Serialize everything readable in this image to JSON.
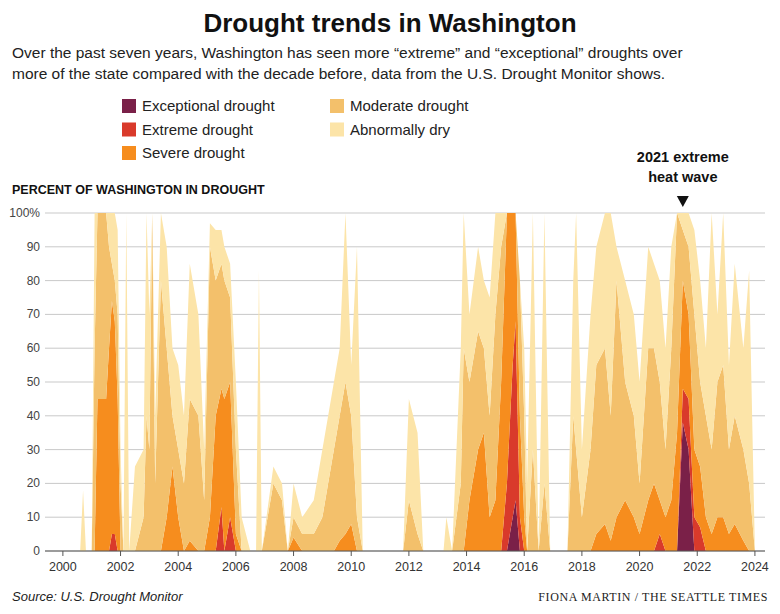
{
  "chart_data": {
    "type": "area",
    "stacked": true,
    "grid": true,
    "legend": "top-left",
    "title": "Drought trends in Washington",
    "subtitle": [
      "Over the past seven years, Washington has seen more “extreme” and “exceptional” droughts over",
      "more of the state compared with the decade before, data from the U.S. Drought Monitor shows."
    ],
    "y_label": "PERCENT OF WASHINGTON IN DROUGHT",
    "source": "Source: U.S. Drought Monitor",
    "credit": "FIONA MARTIN / THE SEATTLE TIMES",
    "annotations": [
      {
        "text": [
          "2021 extreme",
          "heat wave"
        ],
        "x": 2021.5
      }
    ],
    "xlim": [
      1999.38,
      2024.35
    ],
    "xticks": [
      2000,
      2002,
      2004,
      2006,
      2008,
      2010,
      2012,
      2014,
      2016,
      2018,
      2020,
      2022,
      2024
    ],
    "ylim": [
      0,
      100
    ],
    "yticks": [
      0,
      10,
      20,
      30,
      40,
      50,
      60,
      70,
      80,
      90,
      {
        "value": 100,
        "label": "100%"
      }
    ],
    "x": [
      2000.0,
      2000.6,
      2000.7,
      2000.8,
      2001.0,
      2001.1,
      2001.2,
      2001.5,
      2001.6,
      2001.7,
      2001.8,
      2001.9,
      2002.0,
      2002.1,
      2002.2,
      2002.3,
      2002.5,
      2002.8,
      2002.9,
      2003.0,
      2003.1,
      2003.2,
      2003.4,
      2003.6,
      2003.8,
      2004.0,
      2004.2,
      2004.4,
      2004.7,
      2004.9,
      2005.1,
      2005.3,
      2005.5,
      2005.6,
      2005.8,
      2006.0,
      2006.2,
      2006.5,
      2006.7,
      2006.8,
      2006.9,
      2007.3,
      2007.6,
      2007.8,
      2008.0,
      2008.3,
      2008.7,
      2009.0,
      2009.4,
      2009.6,
      2009.8,
      2010.0,
      2010.2,
      2010.4,
      2011.8,
      2012.0,
      2012.3,
      2012.5,
      2013.2,
      2013.3,
      2013.5,
      2013.8,
      2013.9,
      2014.1,
      2014.4,
      2014.6,
      2014.8,
      2015.0,
      2015.2,
      2015.4,
      2015.6,
      2015.7,
      2015.85,
      2016.0,
      2016.1,
      2016.3,
      2016.5,
      2016.7,
      2016.9,
      2017.5,
      2017.7,
      2017.8,
      2018.0,
      2018.3,
      2018.5,
      2018.8,
      2019.0,
      2019.2,
      2019.5,
      2019.8,
      2020.0,
      2020.3,
      2020.5,
      2020.7,
      2020.9,
      2021.1,
      2021.3,
      2021.5,
      2021.7,
      2021.9,
      2022.1,
      2022.3,
      2022.5,
      2022.7,
      2022.9,
      2023.1,
      2023.3,
      2023.6,
      2023.8,
      2024.0
    ],
    "series": [
      {
        "name": "Exceptional drought",
        "color": "#7a2048",
        "values": [
          0,
          0,
          0,
          0,
          0,
          0,
          0,
          0,
          0,
          0,
          0,
          0,
          0,
          0,
          0,
          0,
          0,
          0,
          0,
          0,
          0,
          0,
          0,
          0,
          0,
          0,
          0,
          0,
          0,
          0,
          0,
          0,
          0,
          0,
          0,
          0,
          0,
          0,
          0,
          0,
          0,
          0,
          0,
          0,
          0,
          0,
          0,
          0,
          0,
          0,
          0,
          0,
          0,
          0,
          0,
          0,
          0,
          0,
          0,
          0,
          0,
          0,
          0,
          0,
          0,
          0,
          0,
          0,
          0,
          0,
          10,
          15,
          0,
          0,
          0,
          0,
          0,
          0,
          0,
          0,
          0,
          0,
          0,
          0,
          0,
          0,
          0,
          0,
          0,
          0,
          0,
          0,
          0,
          0,
          0,
          0,
          0,
          38,
          30,
          0,
          0,
          0,
          0,
          0,
          0,
          0,
          0,
          0,
          0,
          0
        ]
      },
      {
        "name": "Extreme drought",
        "color": "#d93a2b",
        "values": [
          0,
          0,
          0,
          0,
          0,
          0,
          0,
          0,
          0,
          5,
          5,
          0,
          0,
          0,
          0,
          0,
          0,
          0,
          0,
          0,
          0,
          0,
          0,
          0,
          0,
          0,
          0,
          0,
          0,
          0,
          0,
          0,
          13,
          0,
          10,
          0,
          0,
          0,
          0,
          0,
          0,
          0,
          0,
          0,
          0,
          0,
          0,
          0,
          0,
          0,
          0,
          0,
          0,
          0,
          0,
          0,
          0,
          0,
          0,
          0,
          0,
          0,
          0,
          0,
          0,
          0,
          0,
          0,
          0,
          20,
          45,
          53,
          10,
          0,
          0,
          0,
          0,
          0,
          0,
          0,
          0,
          0,
          0,
          0,
          0,
          0,
          0,
          0,
          0,
          0,
          0,
          0,
          0,
          5,
          0,
          0,
          0,
          10,
          15,
          10,
          7,
          0,
          0,
          0,
          0,
          0,
          0,
          0,
          0,
          0
        ]
      },
      {
        "name": "Severe drought",
        "color": "#f68d1e",
        "values": [
          0,
          0,
          0,
          0,
          0,
          0,
          45,
          45,
          60,
          69,
          63,
          45,
          0,
          0,
          0,
          0,
          0,
          0,
          0,
          0,
          0,
          0,
          0,
          10,
          25,
          10,
          0,
          3,
          0,
          0,
          10,
          40,
          35,
          45,
          40,
          5,
          0,
          0,
          0,
          0,
          0,
          0,
          0,
          0,
          4,
          0,
          0,
          0,
          0,
          3,
          5,
          8,
          0,
          0,
          0,
          0,
          0,
          0,
          0,
          0,
          0,
          0,
          0,
          15,
          30,
          35,
          10,
          15,
          50,
          80,
          45,
          32,
          30,
          10,
          0,
          0,
          0,
          0,
          0,
          0,
          0,
          0,
          0,
          0,
          5,
          8,
          3,
          10,
          15,
          10,
          5,
          15,
          20,
          10,
          10,
          15,
          35,
          32,
          25,
          20,
          18,
          10,
          5,
          10,
          10,
          5,
          8,
          3,
          0,
          0
        ]
      },
      {
        "name": "Moderate drought",
        "color": "#f3c06b",
        "values": [
          0,
          0,
          0,
          0,
          0,
          60,
          55,
          55,
          30,
          11,
          12,
          25,
          20,
          0,
          0,
          0,
          0,
          10,
          40,
          30,
          100,
          20,
          80,
          50,
          15,
          20,
          20,
          42,
          40,
          15,
          80,
          40,
          37,
          35,
          25,
          25,
          0,
          0,
          0,
          0,
          0,
          20,
          15,
          0,
          6,
          5,
          5,
          10,
          30,
          37,
          45,
          32,
          10,
          0,
          0,
          15,
          5,
          0,
          0,
          0,
          0,
          20,
          60,
          35,
          35,
          25,
          30,
          55,
          40,
          0,
          0,
          0,
          40,
          30,
          0,
          30,
          0,
          20,
          0,
          0,
          40,
          30,
          10,
          30,
          50,
          52,
          37,
          70,
          35,
          30,
          15,
          45,
          40,
          35,
          20,
          45,
          65,
          15,
          20,
          40,
          25,
          30,
          25,
          40,
          45,
          25,
          32,
          27,
          20,
          0
        ]
      },
      {
        "name": "Abnormally dry",
        "color": "#fce4a8",
        "values": [
          0,
          0,
          18,
          0,
          0,
          40,
          0,
          0,
          10,
          15,
          20,
          25,
          10,
          0,
          100,
          0,
          25,
          20,
          60,
          40,
          0,
          20,
          20,
          30,
          20,
          25,
          20,
          40,
          30,
          15,
          7,
          15,
          10,
          10,
          10,
          20,
          10,
          0,
          0,
          83,
          0,
          5,
          5,
          0,
          10,
          5,
          10,
          20,
          20,
          20,
          50,
          15,
          80,
          0,
          0,
          30,
          30,
          0,
          0,
          10,
          0,
          40,
          40,
          20,
          25,
          20,
          35,
          30,
          10,
          0,
          0,
          0,
          0,
          20,
          20,
          70,
          0,
          80,
          0,
          0,
          40,
          70,
          20,
          40,
          35,
          40,
          60,
          10,
          30,
          30,
          30,
          30,
          25,
          30,
          30,
          30,
          0,
          5,
          10,
          25,
          30,
          20,
          70,
          20,
          45,
          25,
          45,
          30,
          63,
          0
        ]
      }
    ]
  }
}
